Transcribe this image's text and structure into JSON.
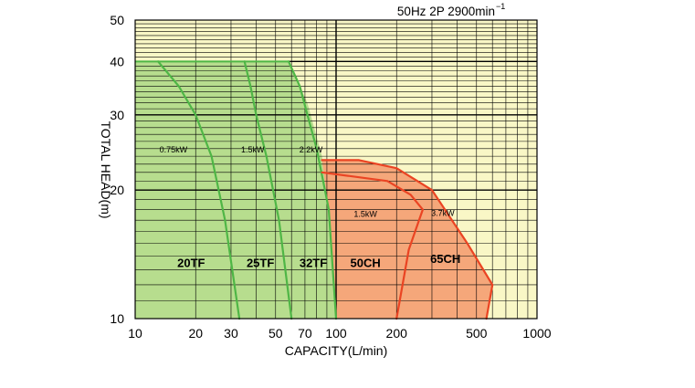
{
  "chart_data": {
    "type": "area",
    "title": "50Hz 2P 2900min",
    "title_superscript": "−1",
    "xlabel": "CAPACITY(L/min)",
    "ylabel": "TOTAL HEAD(m)",
    "x_scale": "log",
    "y_scale": "log",
    "xlim": [
      10,
      1000
    ],
    "ylim": [
      10,
      50
    ],
    "x_ticks": [
      10,
      20,
      30,
      50,
      70,
      100,
      200,
      500,
      1000
    ],
    "x_tick_labels": [
      "10",
      "20",
      "30",
      "50",
      "70",
      "100",
      "200",
      "500",
      "1000"
    ],
    "y_ticks": [
      10,
      20,
      30,
      40,
      50
    ],
    "y_tick_labels": [
      "10",
      "20",
      "30",
      "40",
      "50"
    ],
    "grid": true,
    "colors": {
      "background": "#f9f7c6",
      "tf_region": "#b7dd8e",
      "tf_curve": "#4fb646",
      "ch_region": "#f5a77a",
      "ch_curve": "#ea4423",
      "grid": "#000000"
    },
    "regions": [
      {
        "name": "TF",
        "fill": "#b7dd8e",
        "stroke": "#4fb646",
        "points": [
          [
            10,
            10
          ],
          [
            10,
            40
          ],
          [
            58,
            40
          ],
          [
            72,
            32
          ],
          [
            85,
            24
          ],
          [
            92,
            18
          ],
          [
            100,
            10
          ]
        ]
      },
      {
        "name": "CH",
        "fill": "#f5a77a",
        "stroke": "#ea4423",
        "points": [
          [
            85,
            23.5
          ],
          [
            130,
            23.5
          ],
          [
            200,
            22.5
          ],
          [
            300,
            20
          ],
          [
            450,
            15
          ],
          [
            600,
            12
          ],
          [
            560,
            10
          ],
          [
            100,
            10
          ],
          [
            92,
            18
          ]
        ]
      }
    ],
    "series": [
      {
        "name": "20TF",
        "power": "0.75kW",
        "color": "#4fb646",
        "points": [
          [
            13,
            40
          ],
          [
            16.5,
            35
          ],
          [
            20,
            30
          ],
          [
            24,
            24
          ],
          [
            28,
            17
          ],
          [
            33,
            10
          ]
        ]
      },
      {
        "name": "25TF",
        "power": "1.5kW",
        "color": "#4fb646",
        "points": [
          [
            35,
            40
          ],
          [
            37.5,
            35
          ],
          [
            40,
            30
          ],
          [
            45,
            24
          ],
          [
            52,
            17
          ],
          [
            60,
            10
          ]
        ]
      },
      {
        "name": "32TF",
        "power": "2.2kW",
        "color": "#4fb646",
        "points": [
          [
            58,
            40
          ],
          [
            66,
            35
          ],
          [
            72,
            30
          ],
          [
            80,
            25
          ],
          [
            88,
            20
          ],
          [
            92,
            18
          ],
          [
            100,
            10
          ]
        ]
      },
      {
        "name": "50CH",
        "power": "1.5kW",
        "color": "#ea4423",
        "points": [
          [
            85,
            22
          ],
          [
            180,
            21
          ],
          [
            235,
            19.5
          ],
          [
            270,
            18
          ],
          [
            230,
            14.5
          ],
          [
            200,
            10
          ]
        ]
      },
      {
        "name": "65CH",
        "power": "3.7kW",
        "color": "#ea4423",
        "points": [
          [
            85,
            23.5
          ],
          [
            130,
            23.5
          ],
          [
            200,
            22.5
          ],
          [
            300,
            20
          ],
          [
            450,
            15
          ],
          [
            600,
            12
          ],
          [
            560,
            10
          ]
        ]
      }
    ],
    "annotations": [
      {
        "text": "0.75kW",
        "x": 15.5,
        "y": 24.5
      },
      {
        "text": "1.5kW",
        "x": 38.5,
        "y": 24.5
      },
      {
        "text": "2.2kW",
        "x": 75,
        "y": 24.5
      },
      {
        "text": "20TF",
        "x": 19,
        "y": 13.2,
        "size": "large"
      },
      {
        "text": "25TF",
        "x": 42,
        "y": 13.2,
        "size": "large"
      },
      {
        "text": "32TF",
        "x": 77,
        "y": 13.2,
        "size": "large"
      },
      {
        "text": "1.5kW",
        "x": 140,
        "y": 17.3
      },
      {
        "text": "50CH",
        "x": 140,
        "y": 13.2,
        "size": "large"
      },
      {
        "text": "3.7kW",
        "x": 340,
        "y": 17.4
      },
      {
        "text": "65CH",
        "x": 350,
        "y": 13.5,
        "size": "large"
      }
    ]
  }
}
